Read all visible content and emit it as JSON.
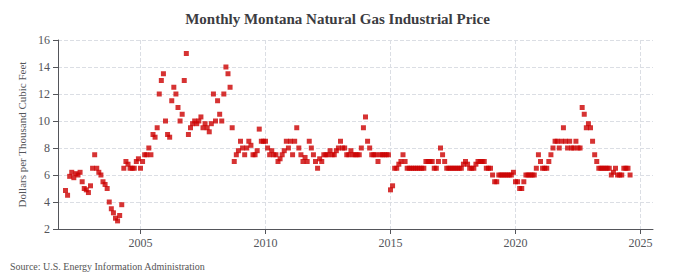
{
  "chart_data": {
    "type": "scatter",
    "title": "Monthly Montana Natural Gas Industrial Price",
    "ylabel": "Dollars per Thousand Cubic Feet",
    "annotations": [
      "Source: U.S. Energy Information Administration"
    ],
    "color": "#cc0000",
    "marker": "square",
    "grid": true,
    "xlim": [
      2001.7,
      2025.5
    ],
    "xticks": [
      2005,
      2010,
      2015,
      2020,
      2025
    ],
    "ylim": [
      2,
      16
    ],
    "yticks": [
      2,
      4,
      6,
      8,
      10,
      12,
      14,
      16
    ],
    "x": [
      2002.0,
      2002.083,
      2002.167,
      2002.25,
      2002.333,
      2002.417,
      2002.5,
      2002.583,
      2002.667,
      2002.75,
      2002.833,
      2002.917,
      2003.0,
      2003.083,
      2003.167,
      2003.25,
      2003.333,
      2003.417,
      2003.5,
      2003.583,
      2003.667,
      2003.75,
      2003.833,
      2003.917,
      2004.0,
      2004.083,
      2004.167,
      2004.25,
      2004.333,
      2004.417,
      2004.5,
      2004.583,
      2004.667,
      2004.75,
      2004.833,
      2004.917,
      2005.0,
      2005.083,
      2005.167,
      2005.25,
      2005.333,
      2005.417,
      2005.5,
      2005.583,
      2005.667,
      2005.75,
      2005.833,
      2005.917,
      2006.0,
      2006.083,
      2006.167,
      2006.25,
      2006.333,
      2006.417,
      2006.5,
      2006.583,
      2006.667,
      2006.75,
      2006.833,
      2006.917,
      2007.0,
      2007.083,
      2007.167,
      2007.25,
      2007.333,
      2007.417,
      2007.5,
      2007.583,
      2007.667,
      2007.75,
      2007.833,
      2007.917,
      2008.0,
      2008.083,
      2008.167,
      2008.25,
      2008.333,
      2008.417,
      2008.5,
      2008.583,
      2008.667,
      2008.75,
      2008.833,
      2008.917,
      2009.0,
      2009.083,
      2009.167,
      2009.25,
      2009.333,
      2009.417,
      2009.5,
      2009.583,
      2009.667,
      2009.75,
      2009.833,
      2009.917,
      2010.0,
      2010.083,
      2010.167,
      2010.25,
      2010.333,
      2010.417,
      2010.5,
      2010.583,
      2010.667,
      2010.75,
      2010.833,
      2010.917,
      2011.0,
      2011.083,
      2011.167,
      2011.25,
      2011.333,
      2011.417,
      2011.5,
      2011.583,
      2011.667,
      2011.75,
      2011.833,
      2011.917,
      2012.0,
      2012.083,
      2012.167,
      2012.25,
      2012.333,
      2012.417,
      2012.5,
      2012.583,
      2012.667,
      2012.75,
      2012.833,
      2012.917,
      2013.0,
      2013.083,
      2013.167,
      2013.25,
      2013.333,
      2013.417,
      2013.5,
      2013.583,
      2013.667,
      2013.75,
      2013.833,
      2013.917,
      2014.0,
      2014.083,
      2014.167,
      2014.25,
      2014.333,
      2014.417,
      2014.5,
      2014.583,
      2014.667,
      2014.75,
      2014.833,
      2014.917,
      2015.0,
      2015.083,
      2015.167,
      2015.25,
      2015.333,
      2015.417,
      2015.5,
      2015.583,
      2015.667,
      2015.75,
      2015.833,
      2015.917,
      2016.0,
      2016.083,
      2016.167,
      2016.25,
      2016.333,
      2016.417,
      2016.5,
      2016.583,
      2016.667,
      2016.75,
      2016.833,
      2016.917,
      2017.0,
      2017.083,
      2017.167,
      2017.25,
      2017.333,
      2017.417,
      2017.5,
      2017.583,
      2017.667,
      2017.75,
      2017.833,
      2017.917,
      2018.0,
      2018.083,
      2018.167,
      2018.25,
      2018.333,
      2018.417,
      2018.5,
      2018.583,
      2018.667,
      2018.75,
      2018.833,
      2018.917,
      2019.0,
      2019.083,
      2019.167,
      2019.25,
      2019.333,
      2019.417,
      2019.5,
      2019.583,
      2019.667,
      2019.75,
      2019.833,
      2019.917,
      2020.0,
      2020.083,
      2020.167,
      2020.25,
      2020.333,
      2020.417,
      2020.5,
      2020.583,
      2020.667,
      2020.75,
      2020.833,
      2020.917,
      2021.0,
      2021.083,
      2021.167,
      2021.25,
      2021.333,
      2021.417,
      2021.5,
      2021.583,
      2021.667,
      2021.75,
      2021.833,
      2021.917,
      2022.0,
      2022.083,
      2022.167,
      2022.25,
      2022.333,
      2022.417,
      2022.5,
      2022.583,
      2022.667,
      2022.75,
      2022.833,
      2022.917,
      2023.0,
      2023.083,
      2023.167,
      2023.25,
      2023.333,
      2023.417,
      2023.5,
      2023.583,
      2023.667,
      2023.75,
      2023.833,
      2023.917,
      2024.0,
      2024.083,
      2024.167,
      2024.25,
      2024.333,
      2024.417,
      2024.5,
      2024.583
    ],
    "values": [
      4.85,
      4.5,
      5.9,
      6.2,
      5.8,
      6.1,
      6.0,
      6.2,
      5.5,
      5.0,
      4.9,
      4.7,
      5.2,
      6.5,
      7.5,
      6.5,
      6.2,
      6.0,
      5.5,
      5.3,
      5.0,
      4.0,
      3.5,
      3.2,
      2.8,
      2.6,
      3.0,
      3.8,
      6.5,
      7.0,
      6.8,
      6.5,
      6.5,
      6.5,
      7.0,
      7.2,
      6.5,
      7.0,
      7.5,
      7.5,
      8.0,
      7.5,
      9.0,
      8.8,
      9.5,
      12.0,
      13.0,
      13.5,
      10.0,
      9.0,
      8.8,
      11.5,
      12.5,
      12.0,
      11.0,
      10.0,
      10.5,
      13.0,
      15.0,
      9.0,
      9.5,
      9.8,
      10.0,
      9.8,
      10.0,
      10.3,
      9.5,
      9.8,
      9.5,
      9.2,
      9.8,
      12.0,
      10.0,
      11.5,
      10.5,
      10.0,
      12.0,
      14.0,
      13.5,
      12.5,
      9.5,
      7.0,
      7.5,
      7.8,
      8.5,
      8.0,
      7.5,
      8.0,
      8.5,
      8.2,
      7.5,
      7.5,
      7.8,
      9.4,
      8.5,
      8.5,
      8.5,
      8.0,
      7.5,
      7.8,
      7.5,
      7.5,
      7.0,
      7.2,
      7.5,
      7.8,
      8.5,
      8.0,
      8.5,
      7.5,
      8.5,
      9.5,
      8.0,
      7.5,
      7.0,
      7.3,
      7.0,
      8.5,
      8.0,
      7.5,
      7.0,
      6.5,
      7.2,
      7.0,
      7.5,
      7.5,
      7.5,
      7.8,
      7.5,
      7.5,
      7.8,
      8.0,
      8.5,
      8.0,
      8.0,
      7.5,
      7.5,
      7.8,
      7.5,
      7.5,
      7.5,
      7.5,
      8.0,
      9.5,
      10.3,
      8.5,
      8.0,
      7.5,
      7.5,
      7.5,
      7.0,
      7.5,
      7.5,
      7.5,
      7.5,
      7.5,
      4.9,
      5.2,
      6.5,
      6.5,
      6.8,
      7.0,
      7.5,
      7.0,
      6.5,
      6.5,
      6.5,
      6.5,
      6.5,
      6.5,
      6.5,
      6.5,
      6.5,
      7.0,
      7.0,
      7.0,
      7.0,
      6.5,
      6.5,
      7.0,
      8.0,
      7.5,
      7.0,
      6.5,
      6.5,
      6.5,
      6.5,
      6.5,
      6.5,
      6.5,
      6.5,
      6.8,
      7.0,
      6.8,
      6.5,
      6.5,
      6.5,
      6.8,
      7.0,
      7.0,
      7.0,
      7.0,
      6.5,
      6.5,
      6.5,
      6.0,
      5.5,
      5.5,
      6.0,
      6.0,
      6.0,
      6.0,
      6.0,
      6.0,
      6.0,
      6.2,
      5.5,
      5.5,
      5.0,
      5.0,
      5.5,
      6.0,
      6.0,
      6.0,
      6.0,
      6.0,
      6.5,
      7.5,
      7.0,
      6.5,
      6.5,
      6.5,
      7.0,
      7.5,
      8.0,
      8.5,
      8.5,
      8.0,
      8.5,
      9.5,
      8.5,
      8.0,
      8.5,
      8.0,
      8.0,
      8.5,
      8.0,
      8.0,
      11.0,
      10.5,
      9.5,
      9.8,
      9.5,
      8.5,
      7.5,
      7.0,
      6.5,
      6.5,
      6.5,
      6.5,
      6.5,
      6.5,
      6.0,
      6.2,
      6.5,
      6.0,
      6.0,
      6.0,
      6.5,
      6.5,
      6.5,
      6.0
    ]
  }
}
